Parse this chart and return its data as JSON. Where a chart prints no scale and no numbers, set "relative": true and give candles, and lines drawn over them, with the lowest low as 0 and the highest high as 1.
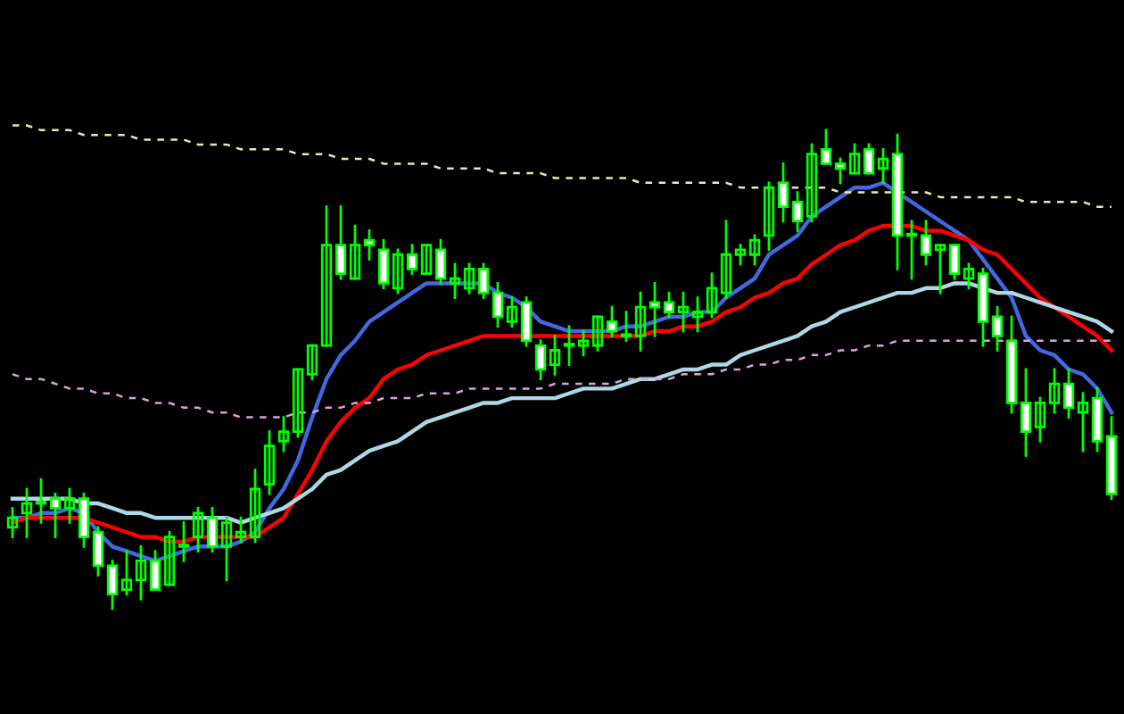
{
  "chart_data": {
    "type": "candlestick",
    "relative": true,
    "grid": false,
    "legend": false,
    "color": "#00ff00",
    "categories": [
      null,
      null,
      null,
      null,
      null,
      null,
      null,
      null,
      null,
      null,
      null,
      null,
      null,
      null,
      null,
      null,
      null,
      null,
      null,
      null,
      null,
      null,
      null,
      null,
      null,
      null,
      null,
      null,
      null,
      null,
      null,
      null,
      null,
      null,
      null,
      null,
      null,
      null,
      null,
      null,
      null,
      null,
      null,
      null,
      null,
      null,
      null,
      null,
      null,
      null,
      null,
      null,
      null,
      null,
      null,
      null,
      null,
      null,
      null,
      null,
      null,
      null,
      null,
      null,
      null,
      null,
      null,
      null,
      null,
      null,
      null,
      null,
      null,
      null,
      null,
      null,
      null,
      null
    ],
    "ohlc": [
      [
        0.17,
        0.21,
        0.15,
        0.19
      ],
      [
        0.2,
        0.25,
        0.15,
        0.22
      ],
      [
        0.22,
        0.27,
        0.18,
        0.22
      ],
      [
        0.23,
        0.24,
        0.15,
        0.21
      ],
      [
        0.21,
        0.25,
        0.18,
        0.23
      ],
      [
        0.23,
        0.24,
        0.13,
        0.15
      ],
      [
        0.16,
        0.17,
        0.07,
        0.09
      ],
      [
        0.09,
        0.1,
        0.0,
        0.03
      ],
      [
        0.04,
        0.12,
        0.03,
        0.06
      ],
      [
        0.06,
        0.13,
        0.02,
        0.1
      ],
      [
        0.1,
        0.12,
        0.04,
        0.04
      ],
      [
        0.05,
        0.16,
        0.05,
        0.15
      ],
      [
        0.13,
        0.18,
        0.1,
        0.13
      ],
      [
        0.15,
        0.21,
        0.12,
        0.2
      ],
      [
        0.19,
        0.21,
        0.12,
        0.13
      ],
      [
        0.13,
        0.19,
        0.06,
        0.18
      ],
      [
        0.15,
        0.19,
        0.14,
        0.16
      ],
      [
        0.15,
        0.29,
        0.14,
        0.25
      ],
      [
        0.26,
        0.37,
        0.24,
        0.34
      ],
      [
        0.35,
        0.4,
        0.33,
        0.37
      ],
      [
        0.37,
        0.5,
        0.36,
        0.5
      ],
      [
        0.49,
        0.55,
        0.48,
        0.55
      ],
      [
        0.55,
        0.84,
        0.55,
        0.76
      ],
      [
        0.76,
        0.84,
        0.69,
        0.7
      ],
      [
        0.69,
        0.8,
        0.69,
        0.76
      ],
      [
        0.77,
        0.79,
        0.73,
        0.76
      ],
      [
        0.75,
        0.77,
        0.67,
        0.68
      ],
      [
        0.67,
        0.75,
        0.66,
        0.74
      ],
      [
        0.74,
        0.76,
        0.7,
        0.71
      ],
      [
        0.7,
        0.76,
        0.7,
        0.76
      ],
      [
        0.75,
        0.77,
        0.68,
        0.69
      ],
      [
        0.68,
        0.72,
        0.65,
        0.69
      ],
      [
        0.67,
        0.72,
        0.66,
        0.71
      ],
      [
        0.71,
        0.72,
        0.65,
        0.66
      ],
      [
        0.66,
        0.68,
        0.59,
        0.61
      ],
      [
        0.6,
        0.65,
        0.59,
        0.63
      ],
      [
        0.64,
        0.65,
        0.55,
        0.56
      ],
      [
        0.55,
        0.56,
        0.48,
        0.5
      ],
      [
        0.51,
        0.57,
        0.49,
        0.54
      ],
      [
        0.55,
        0.59,
        0.51,
        0.55
      ],
      [
        0.55,
        0.58,
        0.53,
        0.56
      ],
      [
        0.55,
        0.61,
        0.54,
        0.61
      ],
      [
        0.6,
        0.63,
        0.57,
        0.58
      ],
      [
        0.57,
        0.62,
        0.56,
        0.57
      ],
      [
        0.57,
        0.66,
        0.54,
        0.63
      ],
      [
        0.64,
        0.68,
        0.57,
        0.63
      ],
      [
        0.64,
        0.66,
        0.61,
        0.62
      ],
      [
        0.62,
        0.66,
        0.58,
        0.63
      ],
      [
        0.61,
        0.65,
        0.58,
        0.62
      ],
      [
        0.62,
        0.7,
        0.61,
        0.67
      ],
      [
        0.66,
        0.81,
        0.65,
        0.74
      ],
      [
        0.74,
        0.76,
        0.72,
        0.75
      ],
      [
        0.74,
        0.78,
        0.72,
        0.77
      ],
      [
        0.78,
        0.89,
        0.75,
        0.88
      ],
      [
        0.89,
        0.93,
        0.81,
        0.84
      ],
      [
        0.85,
        0.87,
        0.79,
        0.81
      ],
      [
        0.82,
        0.97,
        0.81,
        0.95
      ],
      [
        0.96,
        1.0,
        0.93,
        0.93
      ],
      [
        0.93,
        0.94,
        0.89,
        0.92
      ],
      [
        0.91,
        0.97,
        0.91,
        0.95
      ],
      [
        0.96,
        0.97,
        0.91,
        0.91
      ],
      [
        0.92,
        0.96,
        0.89,
        0.94
      ],
      [
        0.95,
        0.99,
        0.71,
        0.78
      ],
      [
        0.78,
        0.81,
        0.69,
        0.78
      ],
      [
        0.78,
        0.81,
        0.72,
        0.74
      ],
      [
        0.75,
        0.76,
        0.66,
        0.76
      ],
      [
        0.76,
        0.76,
        0.69,
        0.7
      ],
      [
        0.69,
        0.72,
        0.67,
        0.71
      ],
      [
        0.7,
        0.71,
        0.55,
        0.6
      ],
      [
        0.61,
        0.63,
        0.54,
        0.57
      ],
      [
        0.56,
        0.61,
        0.41,
        0.43
      ],
      [
        0.43,
        0.5,
        0.32,
        0.37
      ],
      [
        0.38,
        0.44,
        0.35,
        0.43
      ],
      [
        0.43,
        0.5,
        0.41,
        0.47
      ],
      [
        0.47,
        0.5,
        0.4,
        0.42
      ],
      [
        0.41,
        0.45,
        0.33,
        0.43
      ],
      [
        0.44,
        0.46,
        0.33,
        0.35
      ],
      [
        0.36,
        0.4,
        0.23,
        0.24
      ]
    ],
    "series": [
      {
        "type": "line",
        "color": "#4169e1",
        "values": [
          0.19,
          0.19,
          0.2,
          0.2,
          0.21,
          0.2,
          0.16,
          0.13,
          0.12,
          0.11,
          0.1,
          0.11,
          0.12,
          0.13,
          0.13,
          0.13,
          0.14,
          0.16,
          0.21,
          0.25,
          0.31,
          0.4,
          0.48,
          0.53,
          0.56,
          0.6,
          0.62,
          0.64,
          0.66,
          0.68,
          0.68,
          0.68,
          0.68,
          0.68,
          0.66,
          0.65,
          0.63,
          0.6,
          0.59,
          0.58,
          0.58,
          0.58,
          0.58,
          0.59,
          0.59,
          0.6,
          0.61,
          0.61,
          0.62,
          0.62,
          0.65,
          0.67,
          0.69,
          0.74,
          0.76,
          0.78,
          0.82,
          0.84,
          0.86,
          0.88,
          0.88,
          0.89,
          0.87,
          0.85,
          0.83,
          0.81,
          0.79,
          0.77,
          0.73,
          0.69,
          0.65,
          0.57,
          0.54,
          0.53,
          0.5,
          0.49,
          0.46,
          0.41
        ]
      },
      {
        "type": "line",
        "color": "#ff0000",
        "values": [
          0.18,
          0.19,
          0.19,
          0.19,
          0.19,
          0.19,
          0.18,
          0.17,
          0.16,
          0.15,
          0.15,
          0.14,
          0.14,
          0.15,
          0.15,
          0.15,
          0.15,
          0.15,
          0.17,
          0.19,
          0.24,
          0.29,
          0.35,
          0.39,
          0.42,
          0.44,
          0.48,
          0.5,
          0.51,
          0.53,
          0.54,
          0.55,
          0.56,
          0.57,
          0.57,
          0.57,
          0.57,
          0.57,
          0.57,
          0.57,
          0.57,
          0.57,
          0.57,
          0.57,
          0.57,
          0.58,
          0.58,
          0.59,
          0.59,
          0.6,
          0.62,
          0.63,
          0.65,
          0.66,
          0.68,
          0.69,
          0.72,
          0.74,
          0.76,
          0.77,
          0.79,
          0.8,
          0.8,
          0.8,
          0.79,
          0.79,
          0.78,
          0.77,
          0.75,
          0.74,
          0.71,
          0.68,
          0.65,
          0.63,
          0.61,
          0.59,
          0.57,
          0.54
        ]
      },
      {
        "type": "line",
        "color": "#add8e6",
        "values": [
          0.23,
          0.23,
          0.23,
          0.23,
          0.23,
          0.22,
          0.22,
          0.21,
          0.2,
          0.2,
          0.19,
          0.19,
          0.19,
          0.19,
          0.19,
          0.19,
          0.18,
          0.19,
          0.2,
          0.21,
          0.23,
          0.25,
          0.28,
          0.29,
          0.31,
          0.33,
          0.34,
          0.35,
          0.37,
          0.39,
          0.4,
          0.41,
          0.42,
          0.43,
          0.43,
          0.44,
          0.44,
          0.44,
          0.44,
          0.45,
          0.46,
          0.46,
          0.46,
          0.47,
          0.48,
          0.48,
          0.49,
          0.5,
          0.5,
          0.51,
          0.51,
          0.53,
          0.54,
          0.55,
          0.56,
          0.57,
          0.59,
          0.6,
          0.62,
          0.63,
          0.64,
          0.65,
          0.66,
          0.66,
          0.67,
          0.67,
          0.68,
          0.68,
          0.67,
          0.66,
          0.66,
          0.65,
          0.64,
          0.63,
          0.62,
          0.61,
          0.6,
          0.58
        ]
      },
      {
        "type": "line",
        "color": "#eee8aa",
        "line_style": "dashed",
        "values": [
          1.01,
          1.01,
          1.0,
          1.0,
          1.0,
          0.99,
          0.99,
          0.99,
          0.99,
          0.98,
          0.98,
          0.98,
          0.98,
          0.97,
          0.97,
          0.97,
          0.96,
          0.96,
          0.96,
          0.96,
          0.95,
          0.95,
          0.95,
          0.94,
          0.94,
          0.94,
          0.93,
          0.93,
          0.93,
          0.93,
          0.92,
          0.92,
          0.92,
          0.92,
          0.91,
          0.91,
          0.91,
          0.91,
          0.9,
          0.9,
          0.9,
          0.9,
          0.9,
          0.9,
          0.89,
          0.89,
          0.89,
          0.89,
          0.89,
          0.89,
          0.89,
          0.88,
          0.88,
          0.88,
          0.88,
          0.88,
          0.88,
          0.88,
          0.87,
          0.87,
          0.87,
          0.87,
          0.87,
          0.87,
          0.87,
          0.86,
          0.86,
          0.86,
          0.86,
          0.86,
          0.86,
          0.85,
          0.85,
          0.85,
          0.85,
          0.85,
          0.84,
          0.84
        ]
      },
      {
        "type": "line",
        "color": "#dda0dd",
        "line_style": "dashed",
        "values": [
          0.49,
          0.48,
          0.48,
          0.47,
          0.46,
          0.46,
          0.45,
          0.45,
          0.44,
          0.44,
          0.43,
          0.43,
          0.42,
          0.42,
          0.41,
          0.41,
          0.4,
          0.4,
          0.4,
          0.4,
          0.41,
          0.41,
          0.42,
          0.42,
          0.43,
          0.43,
          0.44,
          0.44,
          0.44,
          0.45,
          0.45,
          0.45,
          0.46,
          0.46,
          0.46,
          0.46,
          0.46,
          0.46,
          0.47,
          0.47,
          0.47,
          0.47,
          0.47,
          0.48,
          0.48,
          0.48,
          0.48,
          0.49,
          0.49,
          0.49,
          0.5,
          0.5,
          0.51,
          0.51,
          0.52,
          0.52,
          0.53,
          0.53,
          0.54,
          0.54,
          0.55,
          0.55,
          0.56,
          0.56,
          0.56,
          0.56,
          0.56,
          0.56,
          0.56,
          0.56,
          0.56,
          0.56,
          0.56,
          0.56,
          0.56,
          0.56,
          0.56,
          0.56
        ]
      }
    ]
  }
}
